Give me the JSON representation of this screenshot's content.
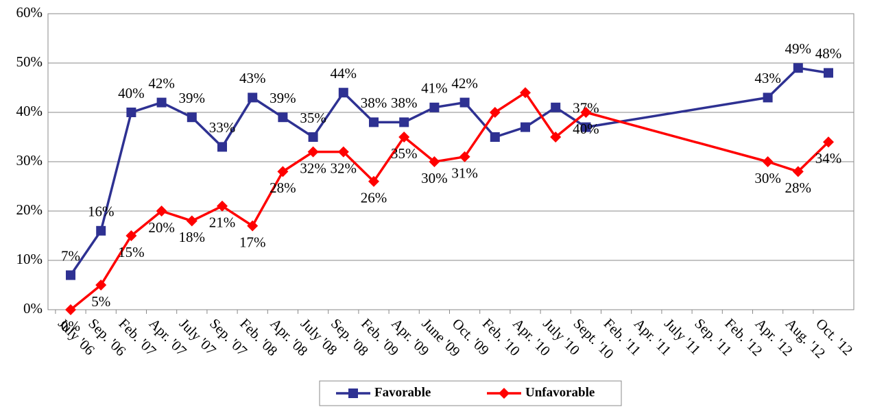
{
  "chart_data": {
    "type": "line",
    "categories": [
      "July '06",
      "Sep. '06",
      "Feb. '07",
      "Apr. '07",
      "July '07",
      "Sep. '07",
      "Feb. '08",
      "Apr. '08",
      "July '08",
      "Sep. '08",
      "Feb. '09",
      "Apr. '09",
      "June '09",
      "Oct. '09",
      "Feb. '10",
      "Apr. '10",
      "July '10",
      "Sept. '10",
      "Feb. '11",
      "Apr. '11",
      "July '11",
      "Sep. '11",
      "Feb. '12",
      "Apr. '12",
      "Aug. '12",
      "Oct. '12"
    ],
    "series": [
      {
        "name": "Favorable",
        "color": "#2e3192",
        "marker": "square",
        "values": [
          7,
          16,
          40,
          42,
          39,
          33,
          43,
          39,
          35,
          44,
          38,
          38,
          41,
          42,
          35,
          37,
          41,
          37,
          null,
          null,
          null,
          null,
          null,
          43,
          49,
          48
        ],
        "value_labels": [
          "7%",
          "16%",
          "40%",
          "42%",
          "39%",
          "33%",
          "43%",
          "39%",
          "35%",
          "44%",
          "38%",
          "38%",
          "41%",
          "42%",
          null,
          null,
          null,
          "37%",
          null,
          null,
          null,
          null,
          null,
          "43%",
          "49%",
          "48%"
        ]
      },
      {
        "name": "Unfavorable",
        "color": "#ff0000",
        "marker": "diamond",
        "values": [
          0,
          5,
          15,
          20,
          18,
          21,
          17,
          28,
          32,
          32,
          26,
          35,
          30,
          31,
          40,
          44,
          35,
          40,
          null,
          null,
          null,
          null,
          null,
          30,
          28,
          34
        ],
        "value_labels": [
          "0%",
          "5%",
          "15%",
          "20%",
          "18%",
          "21%",
          "17%",
          "28%",
          "32%",
          "32%",
          "26%",
          "35%",
          "30%",
          "31%",
          null,
          null,
          null,
          "40%",
          null,
          null,
          null,
          null,
          null,
          "30%",
          "28%",
          "34%"
        ]
      }
    ],
    "ylim": [
      0,
      60
    ],
    "yticks": [
      {
        "value": 0,
        "label": "0%"
      },
      {
        "value": 10,
        "label": "10%"
      },
      {
        "value": 20,
        "label": "20%"
      },
      {
        "value": 30,
        "label": "30%"
      },
      {
        "value": 40,
        "label": "40%"
      },
      {
        "value": 50,
        "label": "50%"
      },
      {
        "value": 60,
        "label": "60%"
      }
    ],
    "grid": true,
    "span_gaps": true,
    "legend": "bottom"
  }
}
